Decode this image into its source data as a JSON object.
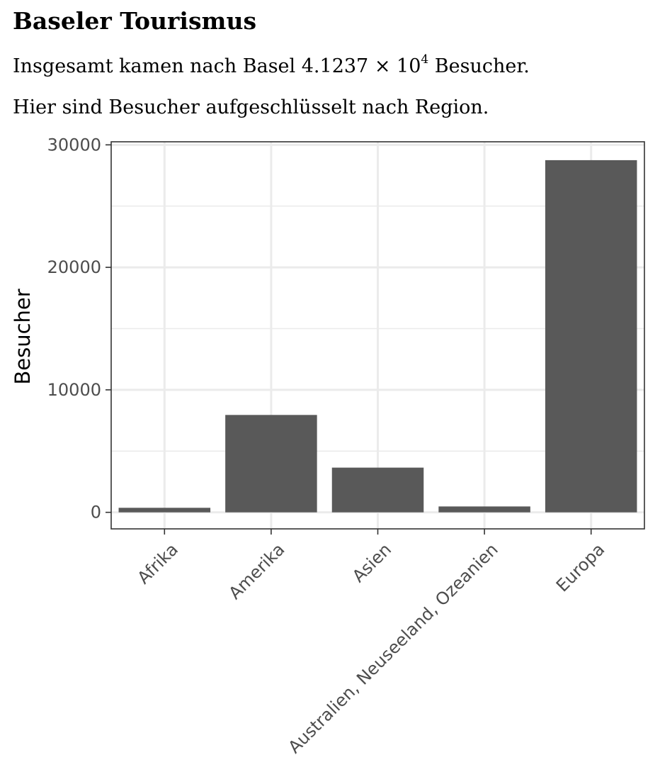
{
  "document": {
    "title": "Baseler Tourismus",
    "intro_prefix": "Insgesamt kamen nach Basel ",
    "total_mantissa": "4.1237",
    "total_times": " × 10",
    "total_exponent": "4",
    "intro_suffix": " Besucher.",
    "breakdown_text": "Hier sind Besucher aufgeschlüsselt nach Region."
  },
  "chart_data": {
    "type": "bar",
    "title": "",
    "xlabel": "",
    "ylabel": "Besucher",
    "categories": [
      "Afrika",
      "Amerika",
      "Asien",
      "Australien, Neuseeland, Ozeanien",
      "Europa"
    ],
    "values": [
      370,
      7950,
      3650,
      480,
      28750
    ],
    "ylim": [
      -1350,
      30250
    ],
    "yticks": [
      0,
      10000,
      20000,
      30000
    ],
    "ytick_labels": [
      "0",
      "10000",
      "20000",
      "30000"
    ],
    "grid": true,
    "bar_color": "#595959",
    "grid_color": "#ebebeb",
    "panel_border_color": "#333333"
  }
}
